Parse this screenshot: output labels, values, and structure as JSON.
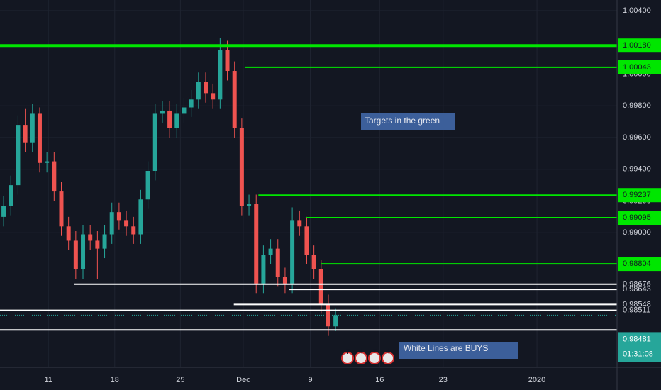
{
  "chart_data": {
    "type": "candlestick",
    "colors": {
      "up": "#26a69a",
      "down": "#ef5350",
      "background": "#131722",
      "grid": "#1f2431",
      "axis_text": "#d1d4dc"
    },
    "candles": [
      [
        0.991,
        0.9923,
        0.9904,
        0.9917
      ],
      [
        0.9917,
        0.9936,
        0.9911,
        0.993
      ],
      [
        0.993,
        0.9974,
        0.9924,
        0.9968
      ],
      [
        0.9968,
        0.9978,
        0.9951,
        0.9957
      ],
      [
        0.9957,
        0.9981,
        0.9951,
        0.9975
      ],
      [
        0.9975,
        0.9979,
        0.9938,
        0.9944
      ],
      [
        0.9944,
        0.9951,
        0.9938,
        0.9945
      ],
      [
        0.9945,
        0.9951,
        0.992,
        0.9926
      ],
      [
        0.9926,
        0.9932,
        0.9898,
        0.9904
      ],
      [
        0.9904,
        0.991,
        0.9889,
        0.9895
      ],
      [
        0.9895,
        0.9901,
        0.9871,
        0.9877
      ],
      [
        0.9877,
        0.9905,
        0.9871,
        0.9899
      ],
      [
        0.9899,
        0.9905,
        0.9889,
        0.9895
      ],
      [
        0.9895,
        0.9901,
        0.9871,
        0.989
      ],
      [
        0.989,
        0.9905,
        0.9884,
        0.9899
      ],
      [
        0.9899,
        0.9919,
        0.9893,
        0.9913
      ],
      [
        0.9913,
        0.9919,
        0.9902,
        0.9908
      ],
      [
        0.9908,
        0.9914,
        0.9898,
        0.9904
      ],
      [
        0.9904,
        0.991,
        0.9893,
        0.9899
      ],
      [
        0.9899,
        0.9927,
        0.9893,
        0.9921
      ],
      [
        0.9921,
        0.9945,
        0.9915,
        0.9939
      ],
      [
        0.9939,
        0.9981,
        0.9933,
        0.9975
      ],
      [
        0.9975,
        0.9983,
        0.9969,
        0.9977
      ],
      [
        0.9977,
        0.9983,
        0.996,
        0.9966
      ],
      [
        0.9966,
        0.9981,
        0.996,
        0.9975
      ],
      [
        0.9975,
        0.9985,
        0.9969,
        0.9979
      ],
      [
        0.9979,
        0.999,
        0.9973,
        0.9984
      ],
      [
        0.9984,
        1.0001,
        0.9978,
        0.9995
      ],
      [
        0.9995,
        1.0001,
        0.9982,
        0.9988
      ],
      [
        0.9988,
        0.9994,
        0.9978,
        0.9984
      ],
      [
        0.9984,
        1.0023,
        0.9978,
        1.0015
      ],
      [
        1.0015,
        1.0021,
        0.9996,
        1.0002
      ],
      [
        1.0002,
        1.0008,
        0.996,
        0.9966
      ],
      [
        0.9966,
        0.9972,
        0.9911,
        0.9917
      ],
      [
        0.9917,
        0.9924,
        0.9911,
        0.9918
      ],
      [
        0.9918,
        0.9924,
        0.9862,
        0.9868
      ],
      [
        0.9868,
        0.9892,
        0.9862,
        0.9886
      ],
      [
        0.9886,
        0.9896,
        0.988,
        0.989
      ],
      [
        0.989,
        0.9896,
        0.9866,
        0.9872
      ],
      [
        0.9872,
        0.9878,
        0.9862,
        0.9868
      ],
      [
        0.9868,
        0.9916,
        0.9862,
        0.9908
      ],
      [
        0.9908,
        0.9914,
        0.9898,
        0.9904
      ],
      [
        0.9904,
        0.991,
        0.988,
        0.9886
      ],
      [
        0.9886,
        0.9892,
        0.9871,
        0.9877
      ],
      [
        0.9877,
        0.9883,
        0.9849,
        0.9855
      ],
      [
        0.9855,
        0.9861,
        0.9835,
        0.9841
      ],
      [
        0.9841,
        0.9852,
        0.9838,
        0.9848
      ]
    ],
    "xlim": [
      0,
      85.5
    ],
    "xticks": [
      {
        "value": 6.7,
        "label": "11"
      },
      {
        "value": 15.9,
        "label": "18"
      },
      {
        "value": 25.0,
        "label": "25"
      },
      {
        "value": 33.7,
        "label": "Dec"
      },
      {
        "value": 43.0,
        "label": "9"
      },
      {
        "value": 52.6,
        "label": "16"
      },
      {
        "value": 61.4,
        "label": "23"
      },
      {
        "value": 74.4,
        "label": "2020"
      }
    ],
    "ylim": [
      0.98152,
      1.00467
    ],
    "yticks": [
      {
        "value": 1.004,
        "label": "1.00400"
      },
      {
        "value": 1.0,
        "label": "1.00000"
      },
      {
        "value": 0.998,
        "label": "0.99800"
      },
      {
        "value": 0.996,
        "label": "0.99600"
      },
      {
        "value": 0.994,
        "label": "0.99400"
      },
      {
        "value": 0.992,
        "label": "0.99200"
      },
      {
        "value": 0.99,
        "label": "0.99000"
      }
    ],
    "grid": true,
    "levels": [
      {
        "price": 1.0018,
        "label": "1.00180",
        "color": "#00e600"
      },
      {
        "price": 1.00043,
        "label": "1.00043",
        "color": "#00e600",
        "from": 33.9
      },
      {
        "price": 0.99237,
        "label": "0.99237",
        "color": "#00e600",
        "from": 35.8
      },
      {
        "price": 0.99095,
        "label": "0.99095",
        "color": "#00e600",
        "from": 42.4
      },
      {
        "price": 0.98804,
        "label": "0.98804",
        "color": "#00e600",
        "from": 44.5
      },
      {
        "price": 0.98676,
        "label": "0.98676",
        "color": "#ffffff",
        "from": 10.3
      },
      {
        "price": 0.98643,
        "label": "0.98643",
        "color": "#ffffff",
        "from": 40.0
      },
      {
        "price": 0.98548,
        "label": "0.98548",
        "color": "#ffffff",
        "from": 32.4
      },
      {
        "price": 0.98511,
        "label": "0.98511",
        "color": "#ffffff"
      },
      {
        "price": 0.98388,
        "color": "#ffffff"
      }
    ],
    "current": {
      "price": 0.98481,
      "label": "0.98481",
      "timer": "01:31:08",
      "color": "#26a69a"
    },
    "annotations": [
      "Targets in the green",
      "White Lines are BUYS"
    ],
    "events": [
      "7",
      "4",
      "7",
      "4"
    ]
  }
}
